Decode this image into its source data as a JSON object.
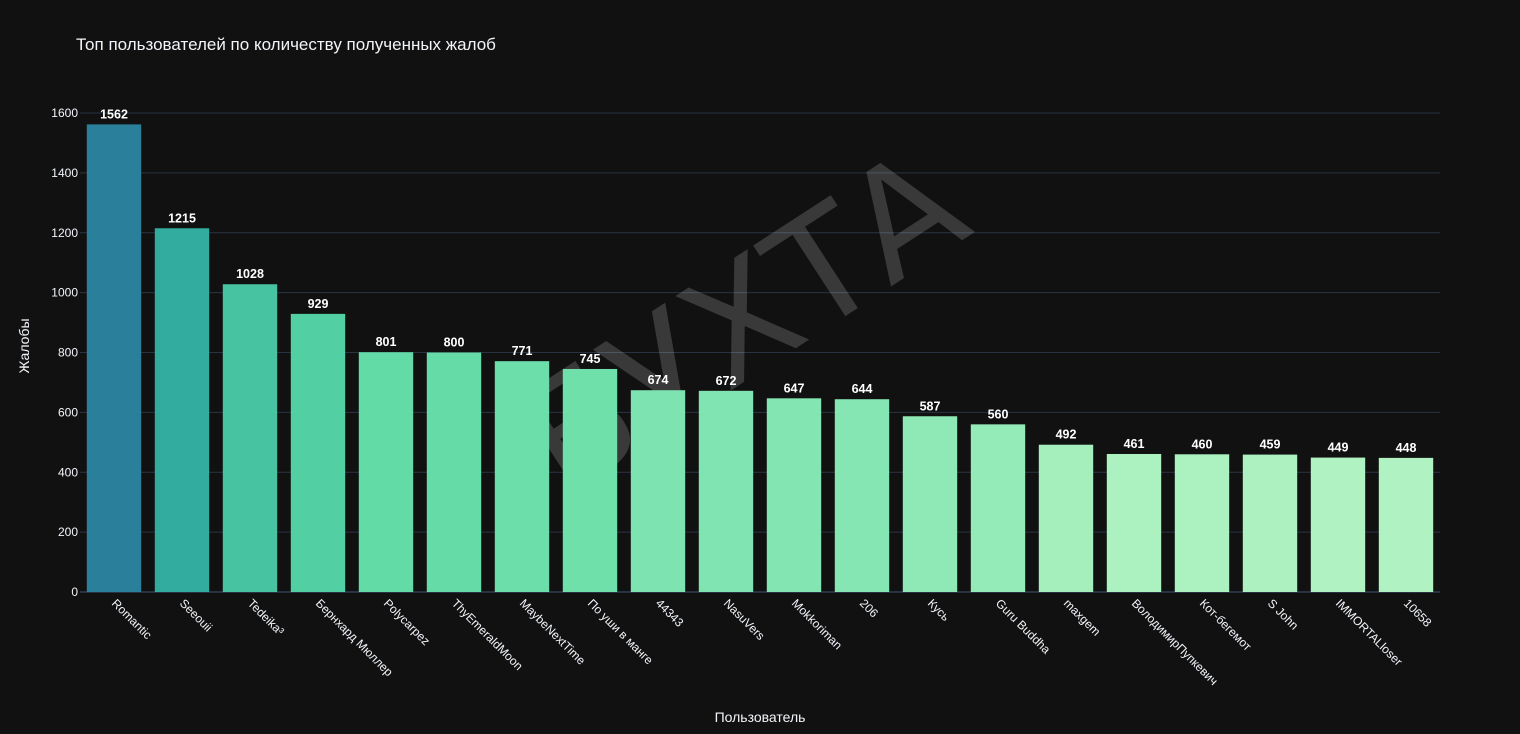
{
  "watermark": "БУХТА",
  "chart_data": {
    "type": "bar",
    "title": "Топ пользователей по количеству полученных жалоб",
    "xlabel": "Пользователь",
    "ylabel": "Жалобы",
    "ylim": [
      0,
      1600
    ],
    "yticks": [
      0,
      200,
      400,
      600,
      800,
      1000,
      1200,
      1400,
      1600
    ],
    "grid": true,
    "legend": "none",
    "categories": [
      "Romantic",
      "Seeouii",
      "Tedeika³",
      "Бернхард Мюллер",
      "Polycarpez",
      "ThyEmeraldMoon",
      "MaybeNextTime",
      "По уши в манге",
      "44343",
      "NasuVers",
      "Mokkoriman",
      "206",
      "Кусь",
      "Guru Buddha",
      "maxgem",
      "ВолодимирПупкевич",
      "Кот-бегемот",
      "S John",
      "IMMORTALloser",
      "10658"
    ],
    "values": [
      1562,
      1215,
      1028,
      929,
      801,
      800,
      771,
      745,
      674,
      672,
      647,
      644,
      587,
      560,
      492,
      461,
      460,
      459,
      449,
      448
    ],
    "colors": [
      "#2a7f9b",
      "#33aca0",
      "#48c3a2",
      "#52cfa3",
      "#62dba6",
      "#65dca7",
      "#6bdeaa",
      "#70e0ab",
      "#7de3b0",
      "#7fe4b1",
      "#83e5b2",
      "#85e6b3",
      "#8fe9b6",
      "#95ebb8",
      "#a5efbd",
      "#acf1c0",
      "#acf1c0",
      "#adf1c1",
      "#b0f2c2",
      "#b0f2c2"
    ]
  }
}
